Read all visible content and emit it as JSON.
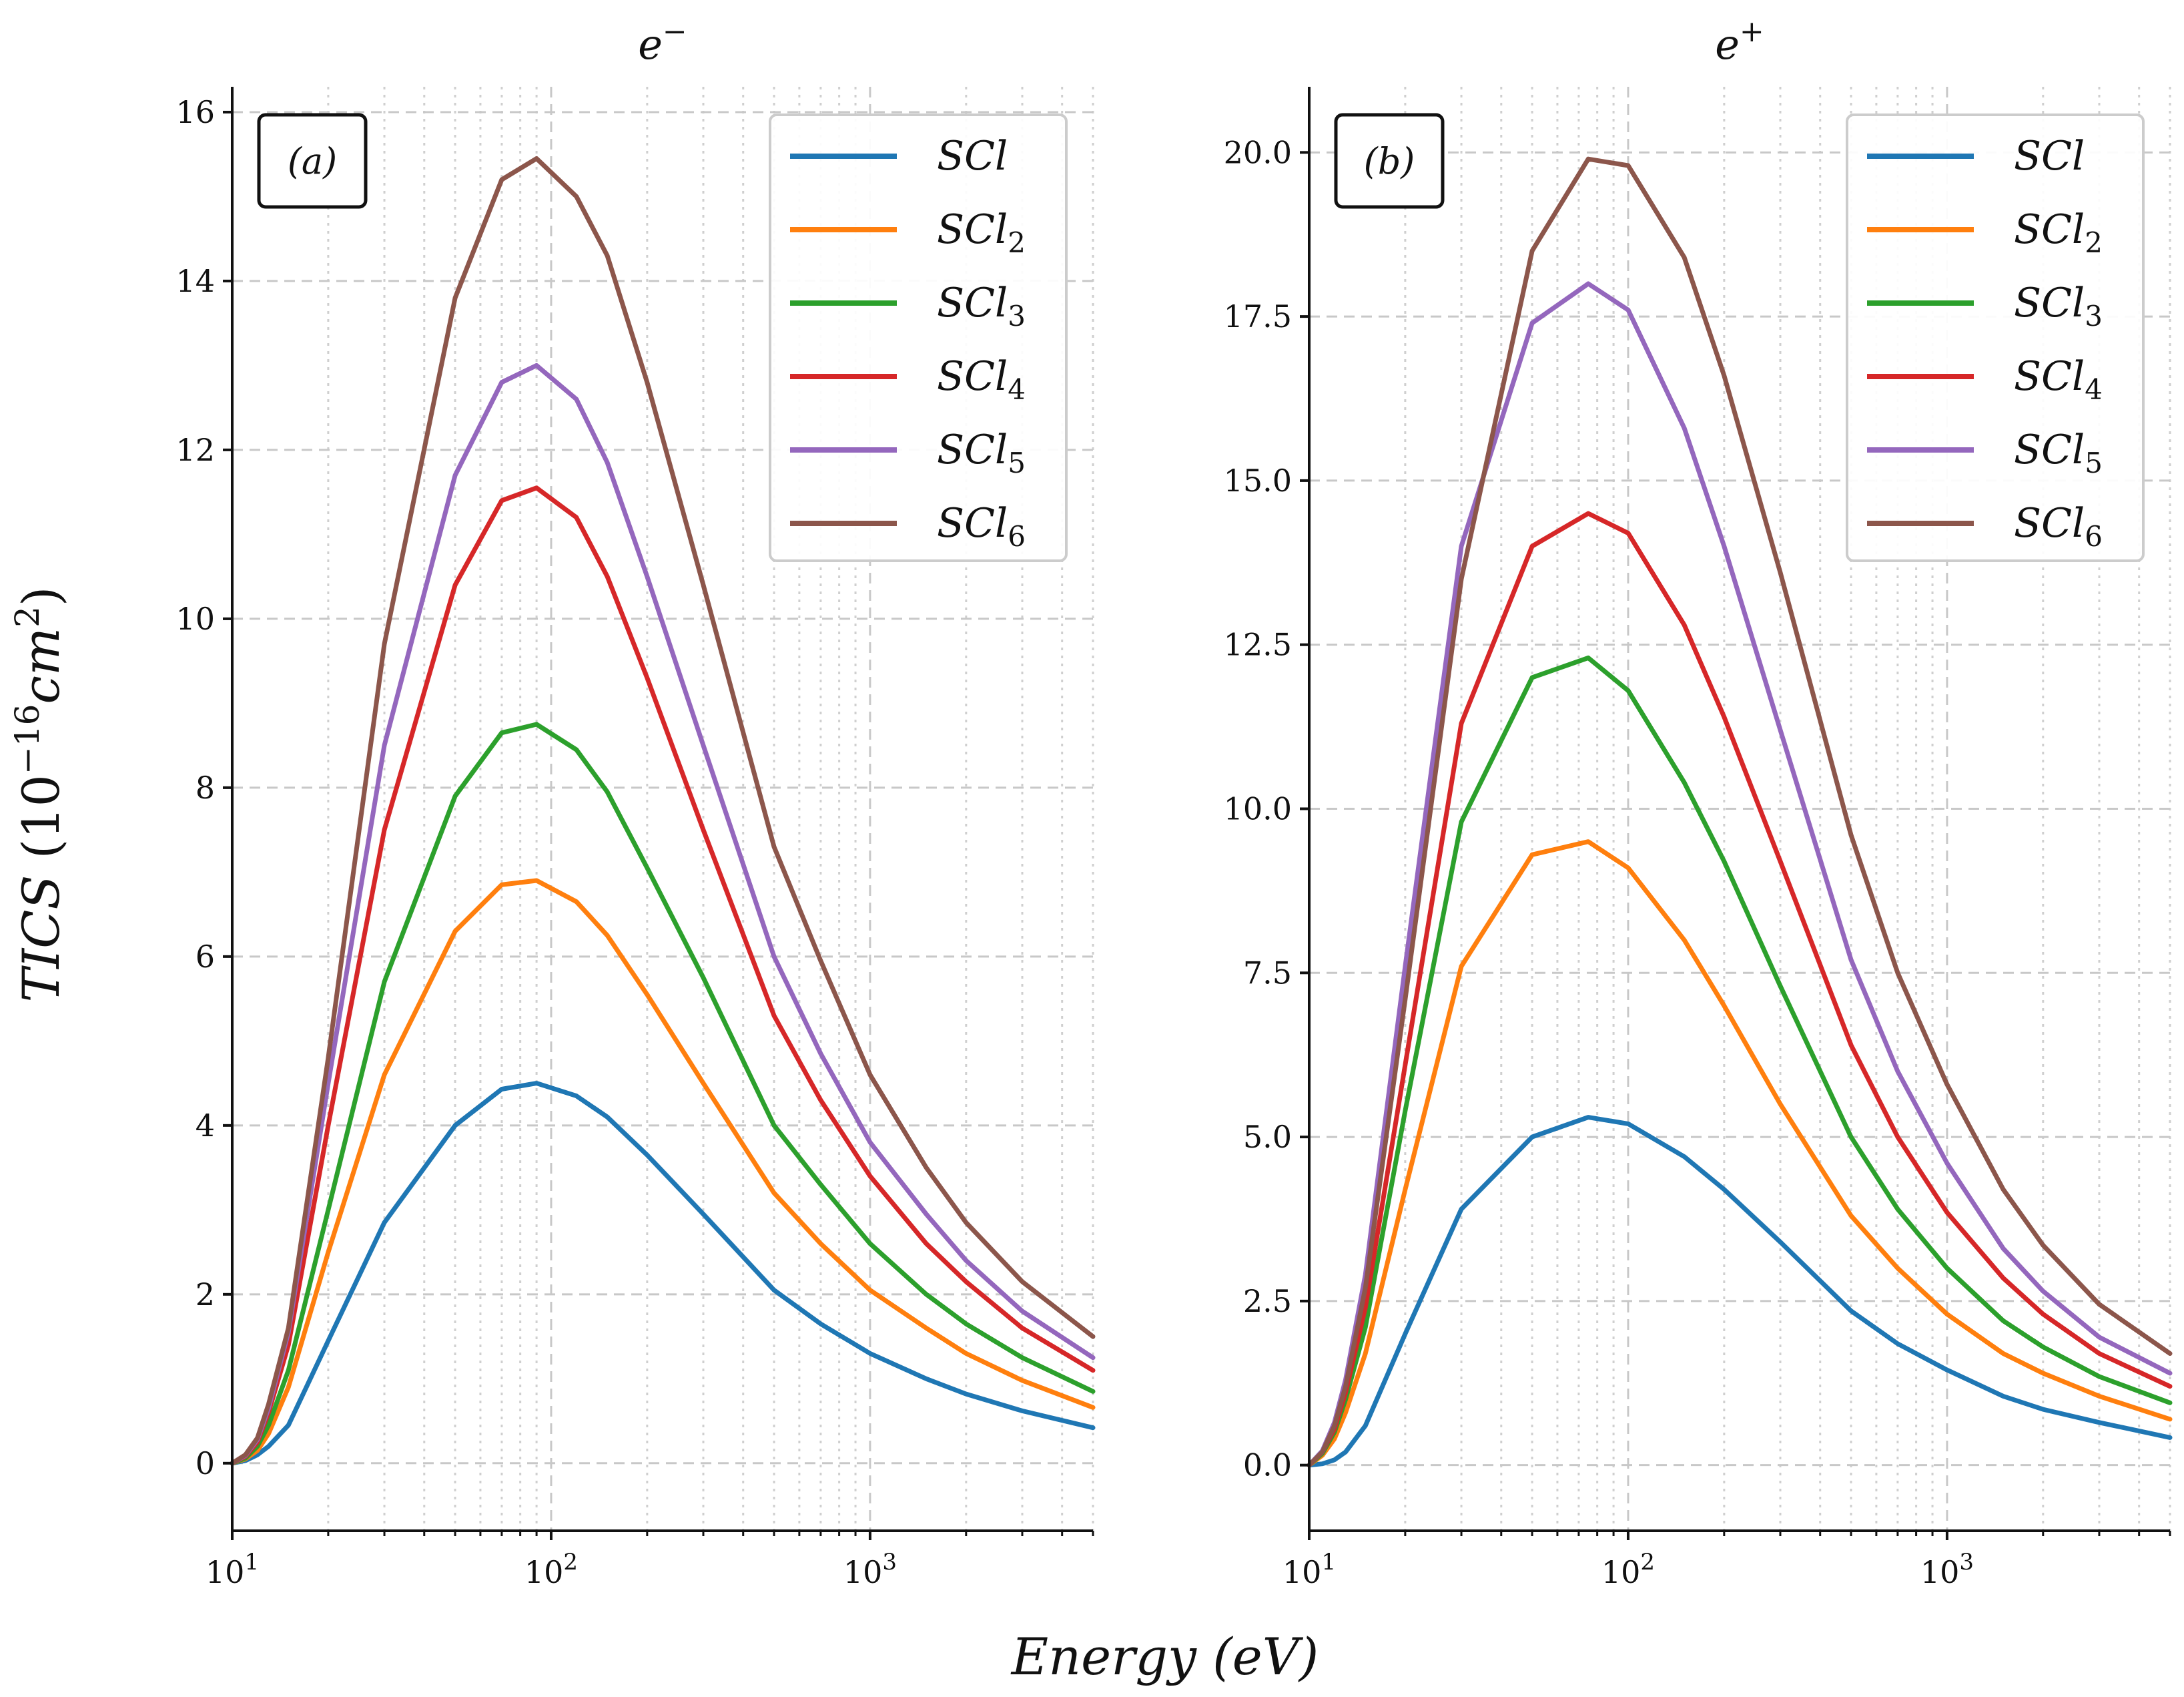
{
  "figure": {
    "xlabel_main": "Energy",
    "xlabel_unit": "(eV)",
    "ylabel_main": "TICS",
    "ylabel_unit_prefix": "(10",
    "ylabel_unit_exp": "−16",
    "ylabel_unit_body": "cm",
    "ylabel_unit_sq": "2",
    "ylabel_unit_close": ")"
  },
  "colors": {
    "SCl": "#1f77b4",
    "SCl2": "#ff7f0e",
    "SCl3": "#2ca02c",
    "SCl4": "#d62728",
    "SCl5": "#9467bd",
    "SCl6": "#8c564b"
  },
  "chart_data": [
    {
      "type": "line",
      "title_base": "e",
      "title_sup": "−",
      "panel_label": "(a)",
      "xscale": "log",
      "xlim": [
        10,
        5000
      ],
      "ylim": [
        -0.8,
        16.3
      ],
      "xticks": [
        {
          "base": "10",
          "exp": "1",
          "value": 10
        },
        {
          "base": "10",
          "exp": "2",
          "value": 100
        },
        {
          "base": "10",
          "exp": "3",
          "value": 1000
        }
      ],
      "yticks": [
        0,
        2,
        4,
        6,
        8,
        10,
        12,
        14,
        16
      ],
      "ytick_labels": [
        "0",
        "2",
        "4",
        "6",
        "8",
        "10",
        "12",
        "14",
        "16"
      ],
      "grid": true,
      "legend_position": "top-right",
      "x": [
        10,
        11,
        12,
        13,
        15,
        20,
        30,
        50,
        70,
        90,
        120,
        150,
        200,
        300,
        500,
        700,
        1000,
        1500,
        2000,
        3000,
        5000
      ],
      "series": [
        {
          "name": "SCl",
          "label_base": "SCl",
          "label_sub": "",
          "color_key": "SCl",
          "values": [
            0,
            0.03,
            0.1,
            0.2,
            0.45,
            1.45,
            2.85,
            4.0,
            4.43,
            4.5,
            4.35,
            4.1,
            3.65,
            2.95,
            2.05,
            1.65,
            1.3,
            1.0,
            0.82,
            0.62,
            0.42
          ]
        },
        {
          "name": "SCl2",
          "label_base": "SCl",
          "label_sub": "2",
          "color_key": "SCl2",
          "values": [
            0,
            0.05,
            0.15,
            0.35,
            0.9,
            2.5,
            4.6,
            6.3,
            6.85,
            6.9,
            6.65,
            6.25,
            5.55,
            4.5,
            3.2,
            2.6,
            2.05,
            1.6,
            1.3,
            0.98,
            0.66
          ]
        },
        {
          "name": "SCl3",
          "label_base": "SCl",
          "label_sub": "3",
          "color_key": "SCl3",
          "values": [
            0,
            0.06,
            0.2,
            0.45,
            1.1,
            3.0,
            5.7,
            7.9,
            8.65,
            8.75,
            8.45,
            7.95,
            7.05,
            5.75,
            4.0,
            3.3,
            2.6,
            2.0,
            1.65,
            1.25,
            0.85
          ]
        },
        {
          "name": "SCl4",
          "label_base": "SCl",
          "label_sub": "4",
          "color_key": "SCl4",
          "values": [
            0,
            0.08,
            0.25,
            0.6,
            1.4,
            4.0,
            7.5,
            10.4,
            11.4,
            11.55,
            11.2,
            10.5,
            9.3,
            7.5,
            5.3,
            4.3,
            3.4,
            2.6,
            2.15,
            1.6,
            1.1
          ]
        },
        {
          "name": "SCl5",
          "label_base": "SCl",
          "label_sub": "5",
          "color_key": "SCl5",
          "values": [
            0,
            0.09,
            0.28,
            0.65,
            1.55,
            4.5,
            8.5,
            11.7,
            12.8,
            13.0,
            12.6,
            11.85,
            10.5,
            8.5,
            6.0,
            4.85,
            3.8,
            2.95,
            2.4,
            1.8,
            1.25
          ]
        },
        {
          "name": "SCl6",
          "label_base": "SCl",
          "label_sub": "6",
          "color_key": "SCl6",
          "values": [
            0,
            0.1,
            0.3,
            0.7,
            1.6,
            4.8,
            9.7,
            13.8,
            15.2,
            15.45,
            15.0,
            14.3,
            12.8,
            10.4,
            7.3,
            5.95,
            4.6,
            3.5,
            2.85,
            2.15,
            1.5
          ]
        }
      ]
    },
    {
      "type": "line",
      "title_base": "e",
      "title_sup": "+",
      "panel_label": "(b)",
      "xscale": "log",
      "xlim": [
        10,
        5000
      ],
      "ylim": [
        -1.0,
        21.0
      ],
      "xticks": [
        {
          "base": "10",
          "exp": "1",
          "value": 10
        },
        {
          "base": "10",
          "exp": "2",
          "value": 100
        },
        {
          "base": "10",
          "exp": "3",
          "value": 1000
        }
      ],
      "yticks": [
        0,
        2.5,
        5,
        7.5,
        10,
        12.5,
        15,
        17.5,
        20
      ],
      "ytick_labels": [
        "0.0",
        "2.5",
        "5.0",
        "7.5",
        "10.0",
        "12.5",
        "15.0",
        "17.5",
        "20.0"
      ],
      "grid": true,
      "legend_position": "top-right",
      "x": [
        10,
        11,
        12,
        13,
        15,
        20,
        30,
        50,
        75,
        100,
        150,
        200,
        300,
        500,
        700,
        1000,
        1500,
        2000,
        3000,
        5000
      ],
      "series": [
        {
          "name": "SCl",
          "label_base": "SCl",
          "label_sub": "",
          "color_key": "SCl",
          "values": [
            0,
            0.02,
            0.08,
            0.2,
            0.6,
            2.0,
            3.9,
            5.0,
            5.3,
            5.2,
            4.7,
            4.2,
            3.4,
            2.35,
            1.85,
            1.45,
            1.05,
            0.85,
            0.65,
            0.42
          ]
        },
        {
          "name": "SCl2",
          "label_base": "SCl",
          "label_sub": "2",
          "color_key": "SCl2",
          "values": [
            0,
            0.15,
            0.4,
            0.8,
            1.7,
            4.2,
            7.6,
            9.3,
            9.5,
            9.1,
            8.0,
            7.0,
            5.5,
            3.8,
            3.0,
            2.3,
            1.7,
            1.4,
            1.05,
            0.7
          ]
        },
        {
          "name": "SCl3",
          "label_base": "SCl",
          "label_sub": "3",
          "color_key": "SCl3",
          "values": [
            0,
            0.18,
            0.5,
            1.0,
            2.1,
            5.4,
            9.8,
            12.0,
            12.3,
            11.8,
            10.4,
            9.2,
            7.3,
            5.0,
            3.9,
            3.0,
            2.2,
            1.8,
            1.35,
            0.95
          ]
        },
        {
          "name": "SCl4",
          "label_base": "SCl",
          "label_sub": "4",
          "color_key": "SCl4",
          "values": [
            0,
            0.2,
            0.55,
            1.1,
            2.4,
            6.1,
            11.3,
            14.0,
            14.5,
            14.2,
            12.8,
            11.4,
            9.2,
            6.4,
            5.0,
            3.85,
            2.85,
            2.3,
            1.7,
            1.2
          ]
        },
        {
          "name": "SCl5",
          "label_base": "SCl",
          "label_sub": "5",
          "color_key": "SCl5",
          "values": [
            0,
            0.22,
            0.65,
            1.3,
            2.9,
            7.6,
            14.0,
            17.4,
            18.0,
            17.6,
            15.8,
            14.0,
            11.2,
            7.7,
            6.0,
            4.6,
            3.3,
            2.65,
            1.95,
            1.4
          ]
        },
        {
          "name": "SCl6",
          "label_base": "SCl",
          "label_sub": "6",
          "color_key": "SCl6",
          "values": [
            0,
            0.2,
            0.6,
            1.2,
            2.7,
            7.1,
            13.5,
            18.5,
            19.9,
            19.8,
            18.4,
            16.6,
            13.6,
            9.6,
            7.5,
            5.8,
            4.2,
            3.35,
            2.45,
            1.7
          ]
        }
      ]
    }
  ]
}
